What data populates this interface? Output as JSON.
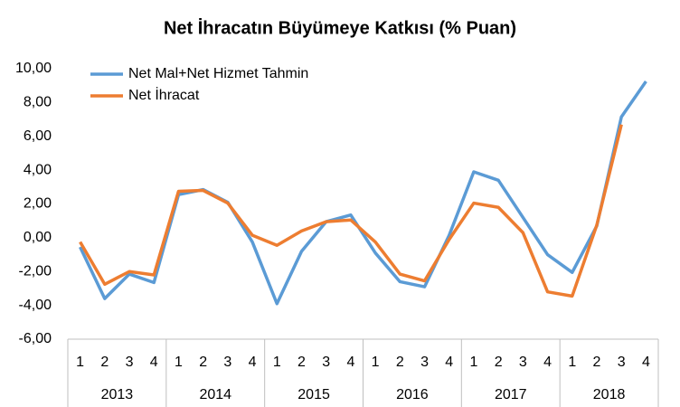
{
  "chart_data": {
    "type": "line",
    "title": "Net İhracatın Büyümeye Katkısı (% Puan)",
    "categories": [
      "1",
      "2",
      "3",
      "4",
      "1",
      "2",
      "3",
      "4",
      "1",
      "2",
      "3",
      "4",
      "1",
      "2",
      "3",
      "4",
      "1",
      "2",
      "3",
      "4",
      "1",
      "2",
      "3",
      "4"
    ],
    "groups": [
      "2013",
      "2014",
      "2015",
      "2016",
      "2017",
      "2018"
    ],
    "series": [
      {
        "name": "Net Mal+Net Hizmet Tahmin",
        "color": "#5b9bd5",
        "values": [
          -0.55,
          -3.6,
          -2.15,
          -2.65,
          2.55,
          2.85,
          2.1,
          -0.25,
          -3.9,
          -0.8,
          0.95,
          1.35,
          -0.9,
          -2.6,
          -2.9,
          0.15,
          3.9,
          3.4,
          1.2,
          -1.0,
          -2.05,
          0.7,
          7.15,
          9.25
        ]
      },
      {
        "name": "Net İhracat",
        "color": "#ed7d31",
        "values": [
          -0.25,
          -2.75,
          -2.0,
          -2.2,
          2.75,
          2.8,
          2.05,
          0.15,
          -0.45,
          0.4,
          0.95,
          1.05,
          -0.25,
          -2.15,
          -2.55,
          -0.1,
          2.05,
          1.8,
          0.3,
          -3.2,
          -3.45,
          0.75,
          6.7,
          null
        ]
      }
    ],
    "ylim": [
      -6,
      10
    ],
    "yticks": [
      {
        "value": -6,
        "label": "-6,00"
      },
      {
        "value": -4,
        "label": "-4,00"
      },
      {
        "value": -2,
        "label": "-2,00"
      },
      {
        "value": 0,
        "label": "0,00"
      },
      {
        "value": 2,
        "label": "2,00"
      },
      {
        "value": 4,
        "label": "4,00"
      },
      {
        "value": 6,
        "label": "6,00"
      },
      {
        "value": 8,
        "label": "8,00"
      },
      {
        "value": 10,
        "label": "10,00"
      }
    ],
    "legend": "top-left"
  }
}
